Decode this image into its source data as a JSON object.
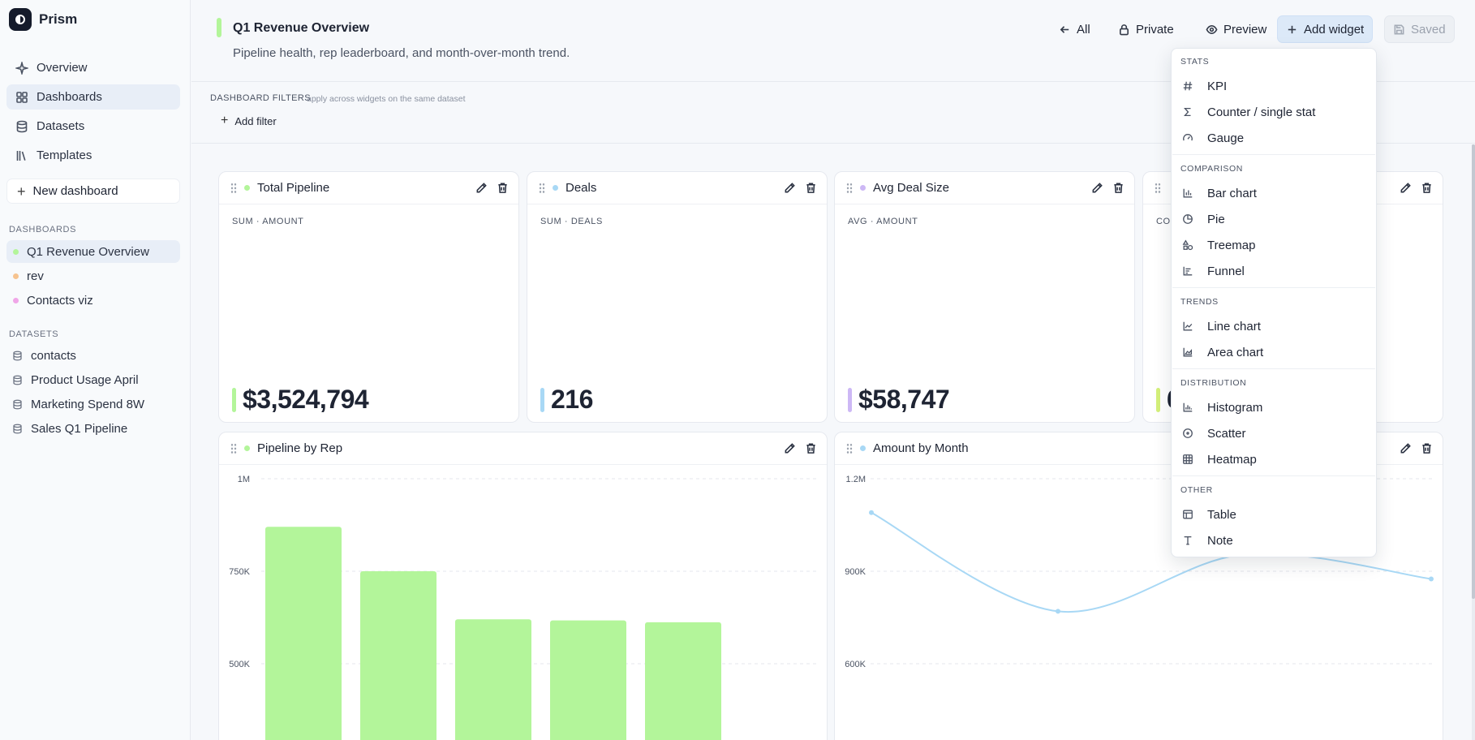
{
  "app": {
    "name": "Prism"
  },
  "sidebar": {
    "nav": [
      {
        "label": "Overview",
        "icon": "sparkle-icon"
      },
      {
        "label": "Dashboards",
        "icon": "grid-icon"
      },
      {
        "label": "Datasets",
        "icon": "database-icon"
      },
      {
        "label": "Templates",
        "icon": "library-icon"
      }
    ],
    "new_dashboard_label": "New dashboard",
    "dashboards_heading": "Dashboards",
    "dashboards": [
      {
        "label": "Q1 Revenue Overview",
        "color": "#b3f59a"
      },
      {
        "label": "rev",
        "color": "#f6c38f"
      },
      {
        "label": "Contacts viz",
        "color": "#f0a6e8"
      }
    ],
    "datasets_heading": "Datasets",
    "datasets": [
      {
        "label": "contacts"
      },
      {
        "label": "Product Usage April"
      },
      {
        "label": "Marketing Spend 8W"
      },
      {
        "label": "Sales Q1 Pipeline"
      }
    ]
  },
  "header": {
    "title": "Q1 Revenue Overview",
    "subtitle": "Pipeline health, rep leaderboard, and month-over-month trend.",
    "buttons": {
      "all": "All",
      "private": "Private",
      "preview": "Preview",
      "add_widget": "Add widget",
      "saved": "Saved"
    }
  },
  "filters": {
    "label": "DASHBOARD FILTERS",
    "hint": "apply across widgets on the same dataset",
    "add_filter": "Add filter"
  },
  "widgets": {
    "total_pipeline": {
      "title": "Total Pipeline",
      "meta": "SUM · AMOUNT",
      "value": "$3,524,794",
      "color": "#b3f59a"
    },
    "deals": {
      "title": "Deals",
      "meta": "SUM · DEALS",
      "value": "216",
      "color": "#a8d8f5"
    },
    "avg_deal": {
      "title": "Avg Deal Size",
      "meta": "AVG · AMOUNT",
      "value": "$58,747",
      "color": "#cdb8f5"
    },
    "fourth": {
      "meta": "CO",
      "value": "6",
      "color": "#d4f07a"
    },
    "pipeline_by_rep": {
      "title": "Pipeline by Rep"
    },
    "amount_by_month": {
      "title": "Amount by Month"
    }
  },
  "chart_data": [
    {
      "type": "bar",
      "title": "Pipeline by Rep",
      "values": [
        870000,
        750000,
        620000,
        617000,
        612000
      ],
      "yticks": [
        "1M",
        "750K",
        "500K"
      ],
      "ytick_values": [
        1000000,
        750000,
        500000
      ],
      "color": "#b3f59a"
    },
    {
      "type": "line",
      "title": "Amount by Month",
      "values": [
        1090000,
        770000,
        955000,
        875000
      ],
      "yticks": [
        "1.2M",
        "900K",
        "600K"
      ],
      "ytick_values": [
        1200000,
        900000,
        600000
      ],
      "color": "#a8d8f5"
    }
  ],
  "add_widget_menu": {
    "groups": [
      {
        "label": "Stats",
        "items": [
          {
            "label": "KPI",
            "icon": "hash-icon"
          },
          {
            "label": "Counter / single stat",
            "icon": "sigma-icon"
          },
          {
            "label": "Gauge",
            "icon": "gauge-icon"
          }
        ]
      },
      {
        "label": "Comparison",
        "items": [
          {
            "label": "Bar chart",
            "icon": "bar-chart-icon"
          },
          {
            "label": "Pie",
            "icon": "pie-icon"
          },
          {
            "label": "Treemap",
            "icon": "shapes-icon"
          },
          {
            "label": "Funnel",
            "icon": "funnel-icon"
          }
        ]
      },
      {
        "label": "Trends",
        "items": [
          {
            "label": "Line chart",
            "icon": "line-chart-icon"
          },
          {
            "label": "Area chart",
            "icon": "area-chart-icon"
          }
        ]
      },
      {
        "label": "Distribution",
        "items": [
          {
            "label": "Histogram",
            "icon": "histogram-icon"
          },
          {
            "label": "Scatter",
            "icon": "scatter-icon"
          },
          {
            "label": "Heatmap",
            "icon": "grid-table-icon"
          }
        ]
      },
      {
        "label": "Other",
        "items": [
          {
            "label": "Table",
            "icon": "table-icon"
          },
          {
            "label": "Note",
            "icon": "text-icon"
          }
        ]
      }
    ]
  }
}
